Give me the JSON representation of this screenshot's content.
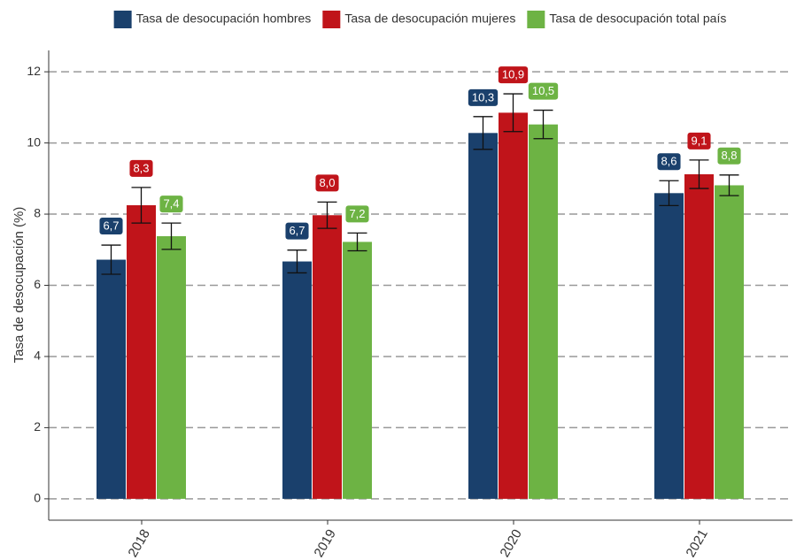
{
  "chart_data": {
    "type": "bar",
    "y_label": "Tasa de desocupación (%)",
    "categories": [
      "2018",
      "2019",
      "2020",
      "2021"
    ],
    "series": [
      {
        "name": "Tasa de desocupación hombres",
        "color": "#1a406c",
        "values": [
          6.72,
          6.67,
          10.28,
          8.59
        ],
        "errors": [
          0.41,
          0.32,
          0.46,
          0.35
        ],
        "value_labels": [
          "6,7",
          "6,7",
          "10,3",
          "8,6"
        ]
      },
      {
        "name": "Tasa de desocupación mujeres",
        "color": "#c0141a",
        "values": [
          8.25,
          7.97,
          10.85,
          9.12
        ],
        "errors": [
          0.5,
          0.37,
          0.53,
          0.4
        ],
        "value_labels": [
          "8,3",
          "8,0",
          "10,9",
          "9,1"
        ]
      },
      {
        "name": "Tasa de desocupación total país",
        "color": "#6db344",
        "values": [
          7.38,
          7.22,
          10.52,
          8.81
        ],
        "errors": [
          0.37,
          0.25,
          0.4,
          0.29
        ],
        "value_labels": [
          "7,4",
          "7,2",
          "10,5",
          "8,8"
        ]
      }
    ],
    "ylim": [
      -0.6,
      12.6
    ],
    "yticks": [
      0,
      2,
      4,
      6,
      8,
      10,
      12
    ],
    "grid": true,
    "legend": "top"
  }
}
